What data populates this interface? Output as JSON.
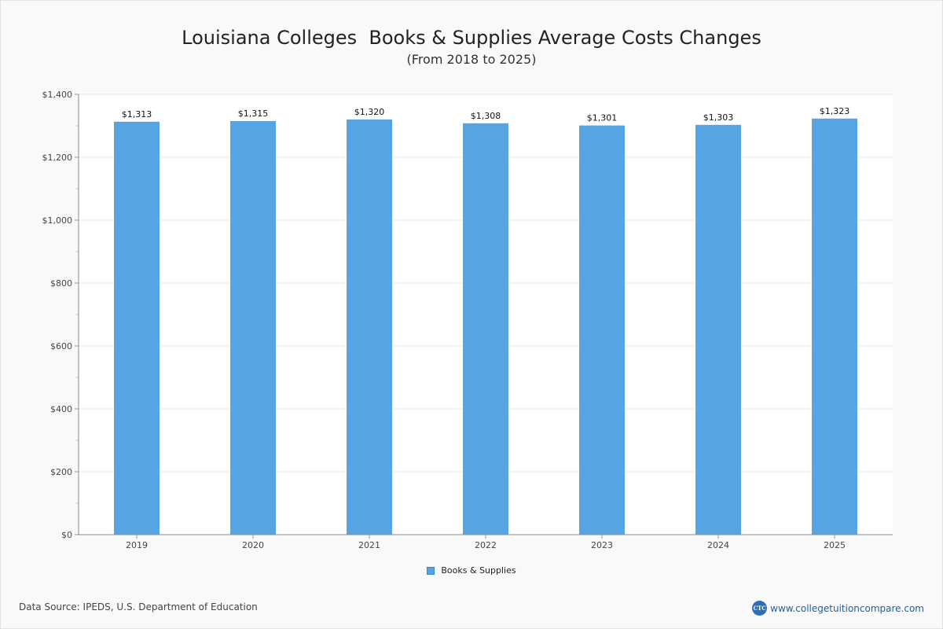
{
  "chart_data": {
    "type": "bar",
    "title": "Louisiana Colleges  Books & Supplies Average Costs Changes",
    "subtitle": "(From 2018 to 2025)",
    "categories": [
      "2019",
      "2020",
      "2021",
      "2022",
      "2023",
      "2024",
      "2025"
    ],
    "series": [
      {
        "name": "Books & Supplies",
        "values": [
          1313,
          1315,
          1320,
          1308,
          1301,
          1303,
          1323
        ],
        "labels": [
          "$1,313",
          "$1,315",
          "$1,320",
          "$1,308",
          "$1,301",
          "$1,303",
          "$1,323"
        ]
      }
    ],
    "ylim": [
      0,
      1400
    ],
    "yticks": [
      0,
      200,
      400,
      600,
      800,
      1000,
      1200,
      1400
    ],
    "ytick_labels": [
      "$0",
      "$200",
      "$400",
      "$600",
      "$800",
      "$1,000",
      "$1,200",
      "$1,400"
    ],
    "grid": true,
    "legend_position": "bottom-center",
    "bar_color": "#57a4e2"
  },
  "footer": {
    "data_source": "Data Source: IPEDS, U.S. Department of Education",
    "brand_text": "www.collegetuitioncompare.com",
    "brand_logo_text": "CTC",
    "brand_logo_icon": "ctc-logo-icon"
  }
}
